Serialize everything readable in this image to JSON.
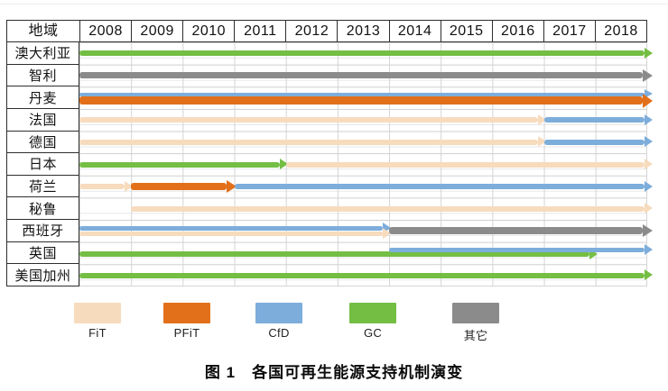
{
  "figure": {
    "caption": "图 1　各国可再生能源支持机制演变"
  },
  "table": {
    "region_header": "地域",
    "years": [
      "2008",
      "2009",
      "2010",
      "2011",
      "2012",
      "2013",
      "2014",
      "2015",
      "2016",
      "2017",
      "2018"
    ]
  },
  "legend": [
    {
      "key": "FiT",
      "label": "FiT",
      "color": "#F7DBBD"
    },
    {
      "key": "PFiT",
      "label": "PFiT",
      "color": "#E2701B"
    },
    {
      "key": "CfD",
      "label": "CfD",
      "color": "#7DADDB"
    },
    {
      "key": "GC",
      "label": "GC",
      "color": "#74BE44"
    },
    {
      "key": "other",
      "label": "其它",
      "color": "#8B8B8B"
    }
  ],
  "chart_data": {
    "type": "gantt",
    "title": "图 1　各国可再生能源支持机制演变",
    "x_ticks": [
      2008,
      2009,
      2010,
      2011,
      2012,
      2013,
      2014,
      2015,
      2016,
      2017,
      2018
    ],
    "x_range": [
      2008,
      2019
    ],
    "mechanism_legend": [
      "FiT",
      "PFiT",
      "CfD",
      "GC",
      "其它"
    ],
    "rows": [
      {
        "region": "澳大利亚",
        "segments": [
          {
            "mechanism": "GC",
            "start": 2008,
            "end": 2019
          }
        ]
      },
      {
        "region": "智利",
        "segments": [
          {
            "mechanism": "other",
            "start": 2008,
            "end": 2019,
            "thick": 7
          }
        ]
      },
      {
        "region": "丹麦",
        "segments": [
          {
            "mechanism": "CfD",
            "start": 2008,
            "end": 2019,
            "dy": -4,
            "thick": 4
          },
          {
            "mechanism": "PFiT",
            "start": 2008,
            "end": 2019,
            "dy": 3,
            "thick": 9,
            "head": 16
          }
        ]
      },
      {
        "region": "法国",
        "segments": [
          {
            "mechanism": "FiT",
            "start": 2008,
            "end": 2017
          },
          {
            "mechanism": "CfD",
            "start": 2017,
            "end": 2019
          }
        ]
      },
      {
        "region": "德国",
        "segments": [
          {
            "mechanism": "FiT",
            "start": 2008,
            "end": 2017
          },
          {
            "mechanism": "CfD",
            "start": 2017,
            "end": 2019
          }
        ]
      },
      {
        "region": "日本",
        "segments": [
          {
            "mechanism": "GC",
            "start": 2008,
            "end": 2012
          },
          {
            "mechanism": "FiT",
            "start": 2012,
            "end": 2019
          }
        ]
      },
      {
        "region": "荷兰",
        "segments": [
          {
            "mechanism": "FiT",
            "start": 2008,
            "end": 2009
          },
          {
            "mechanism": "PFiT",
            "start": 2009,
            "end": 2011,
            "thick": 8,
            "head": 15
          },
          {
            "mechanism": "CfD",
            "start": 2011,
            "end": 2019
          }
        ]
      },
      {
        "region": "秘鲁",
        "segments": [
          {
            "mechanism": "FiT",
            "start": 2009,
            "end": 2019
          }
        ]
      },
      {
        "region": "西班牙",
        "segments": [
          {
            "mechanism": "CfD",
            "start": 2008,
            "end": 2014,
            "dy": -3,
            "thick": 5
          },
          {
            "mechanism": "FiT",
            "start": 2008,
            "end": 2014,
            "dy": 3,
            "thick": 5
          },
          {
            "mechanism": "other",
            "start": 2014,
            "end": 2019,
            "thick": 8,
            "head": 15
          }
        ]
      },
      {
        "region": "英国",
        "segments": [
          {
            "mechanism": "GC",
            "start": 2008,
            "end": 2018,
            "dy": 1
          },
          {
            "mechanism": "CfD",
            "start": 2014,
            "end": 2019,
            "dy": -4,
            "thick": 5
          }
        ]
      },
      {
        "region": "美国加州",
        "segments": [
          {
            "mechanism": "GC",
            "start": 2008,
            "end": 2019
          }
        ]
      }
    ]
  }
}
